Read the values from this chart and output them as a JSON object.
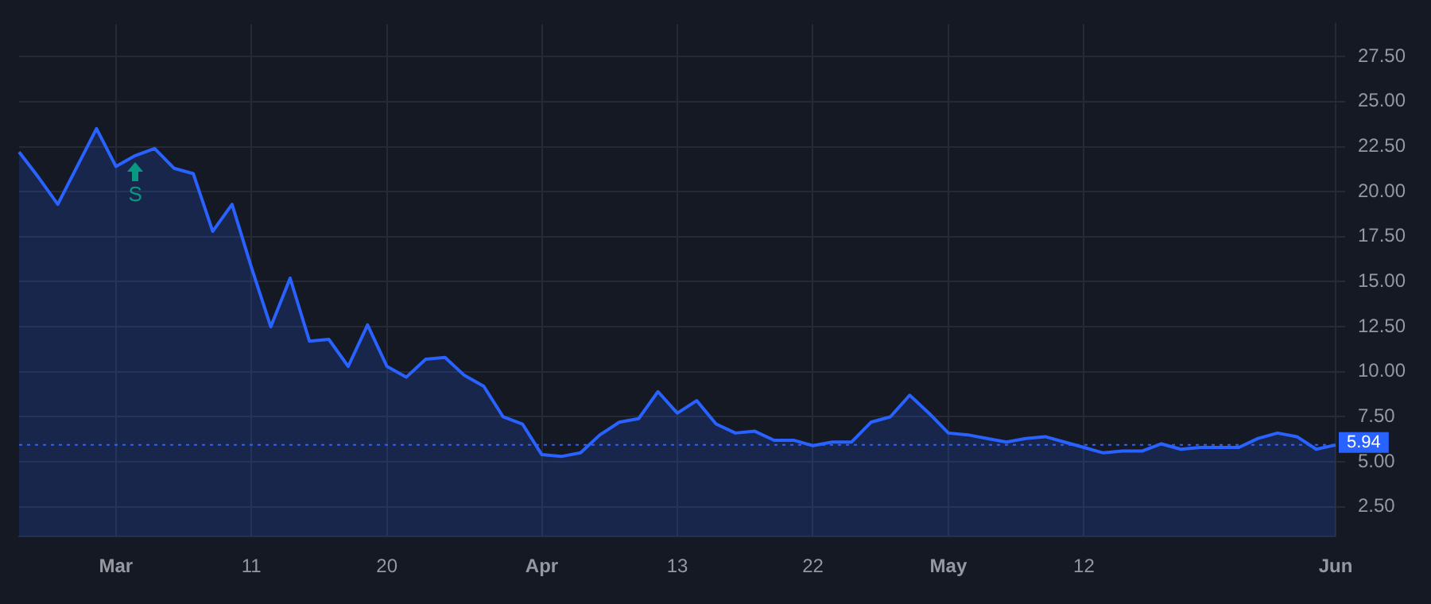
{
  "chart_data": {
    "type": "area",
    "categories": [
      null,
      null,
      null,
      null,
      null,
      "Mar",
      null,
      null,
      null,
      null,
      null,
      null,
      "11",
      null,
      null,
      null,
      null,
      null,
      null,
      "20",
      null,
      null,
      null,
      null,
      null,
      null,
      null,
      "Apr",
      null,
      null,
      null,
      null,
      null,
      null,
      "13",
      null,
      null,
      null,
      null,
      null,
      null,
      "22",
      null,
      null,
      null,
      null,
      null,
      null,
      "May",
      null,
      null,
      null,
      null,
      null,
      null,
      "12",
      null,
      null,
      null,
      null,
      null,
      null,
      null,
      null,
      null,
      null,
      null,
      null,
      "Jun"
    ],
    "series": [
      {
        "color": "#2962ff",
        "values": [
          22.2,
          20.8,
          19.3,
          21.4,
          23.5,
          21.4,
          22.0,
          22.4,
          21.3,
          21.0,
          17.8,
          19.3,
          15.8,
          12.5,
          15.2,
          11.7,
          11.8,
          10.3,
          12.6,
          10.3,
          9.7,
          10.7,
          10.8,
          9.8,
          9.2,
          7.5,
          7.1,
          5.4,
          5.3,
          5.5,
          6.5,
          7.2,
          7.4,
          8.9,
          7.7,
          8.4,
          7.1,
          6.6,
          6.7,
          6.2,
          6.2,
          5.9,
          6.1,
          6.1,
          7.2,
          7.5,
          8.7,
          7.7,
          6.6,
          6.5,
          6.3,
          6.1,
          6.3,
          6.4,
          6.1,
          5.8,
          5.5,
          5.6,
          5.6,
          6.0,
          5.7,
          5.8,
          5.8,
          5.8,
          6.3,
          6.6,
          6.4,
          5.7,
          5.94
        ]
      }
    ],
    "ylim": [
      0.85,
      29.3
    ],
    "yticks": [
      {
        "value": 2.5,
        "label": "2.50"
      },
      {
        "value": 5,
        "label": "5.00"
      },
      {
        "value": 7.5,
        "label": "7.50"
      },
      {
        "value": 10,
        "label": "10.00"
      },
      {
        "value": 12.5,
        "label": "12.50"
      },
      {
        "value": 15,
        "label": "15.00"
      },
      {
        "value": 17.5,
        "label": "17.50"
      },
      {
        "value": 20,
        "label": "20.00"
      },
      {
        "value": 22.5,
        "label": "22.50"
      },
      {
        "value": 25,
        "label": "25.00"
      },
      {
        "value": 27.5,
        "label": "27.50"
      }
    ],
    "ref_lines": [
      {
        "axis": "y",
        "value": 5.94,
        "label": "5.94",
        "color": "#2962ff",
        "line_style": "dotted"
      }
    ],
    "annotations": [
      {
        "text": "S",
        "y": 22.0
      }
    ],
    "grid": true,
    "legend": false,
    "marker": "none",
    "line_style": "solid"
  }
}
